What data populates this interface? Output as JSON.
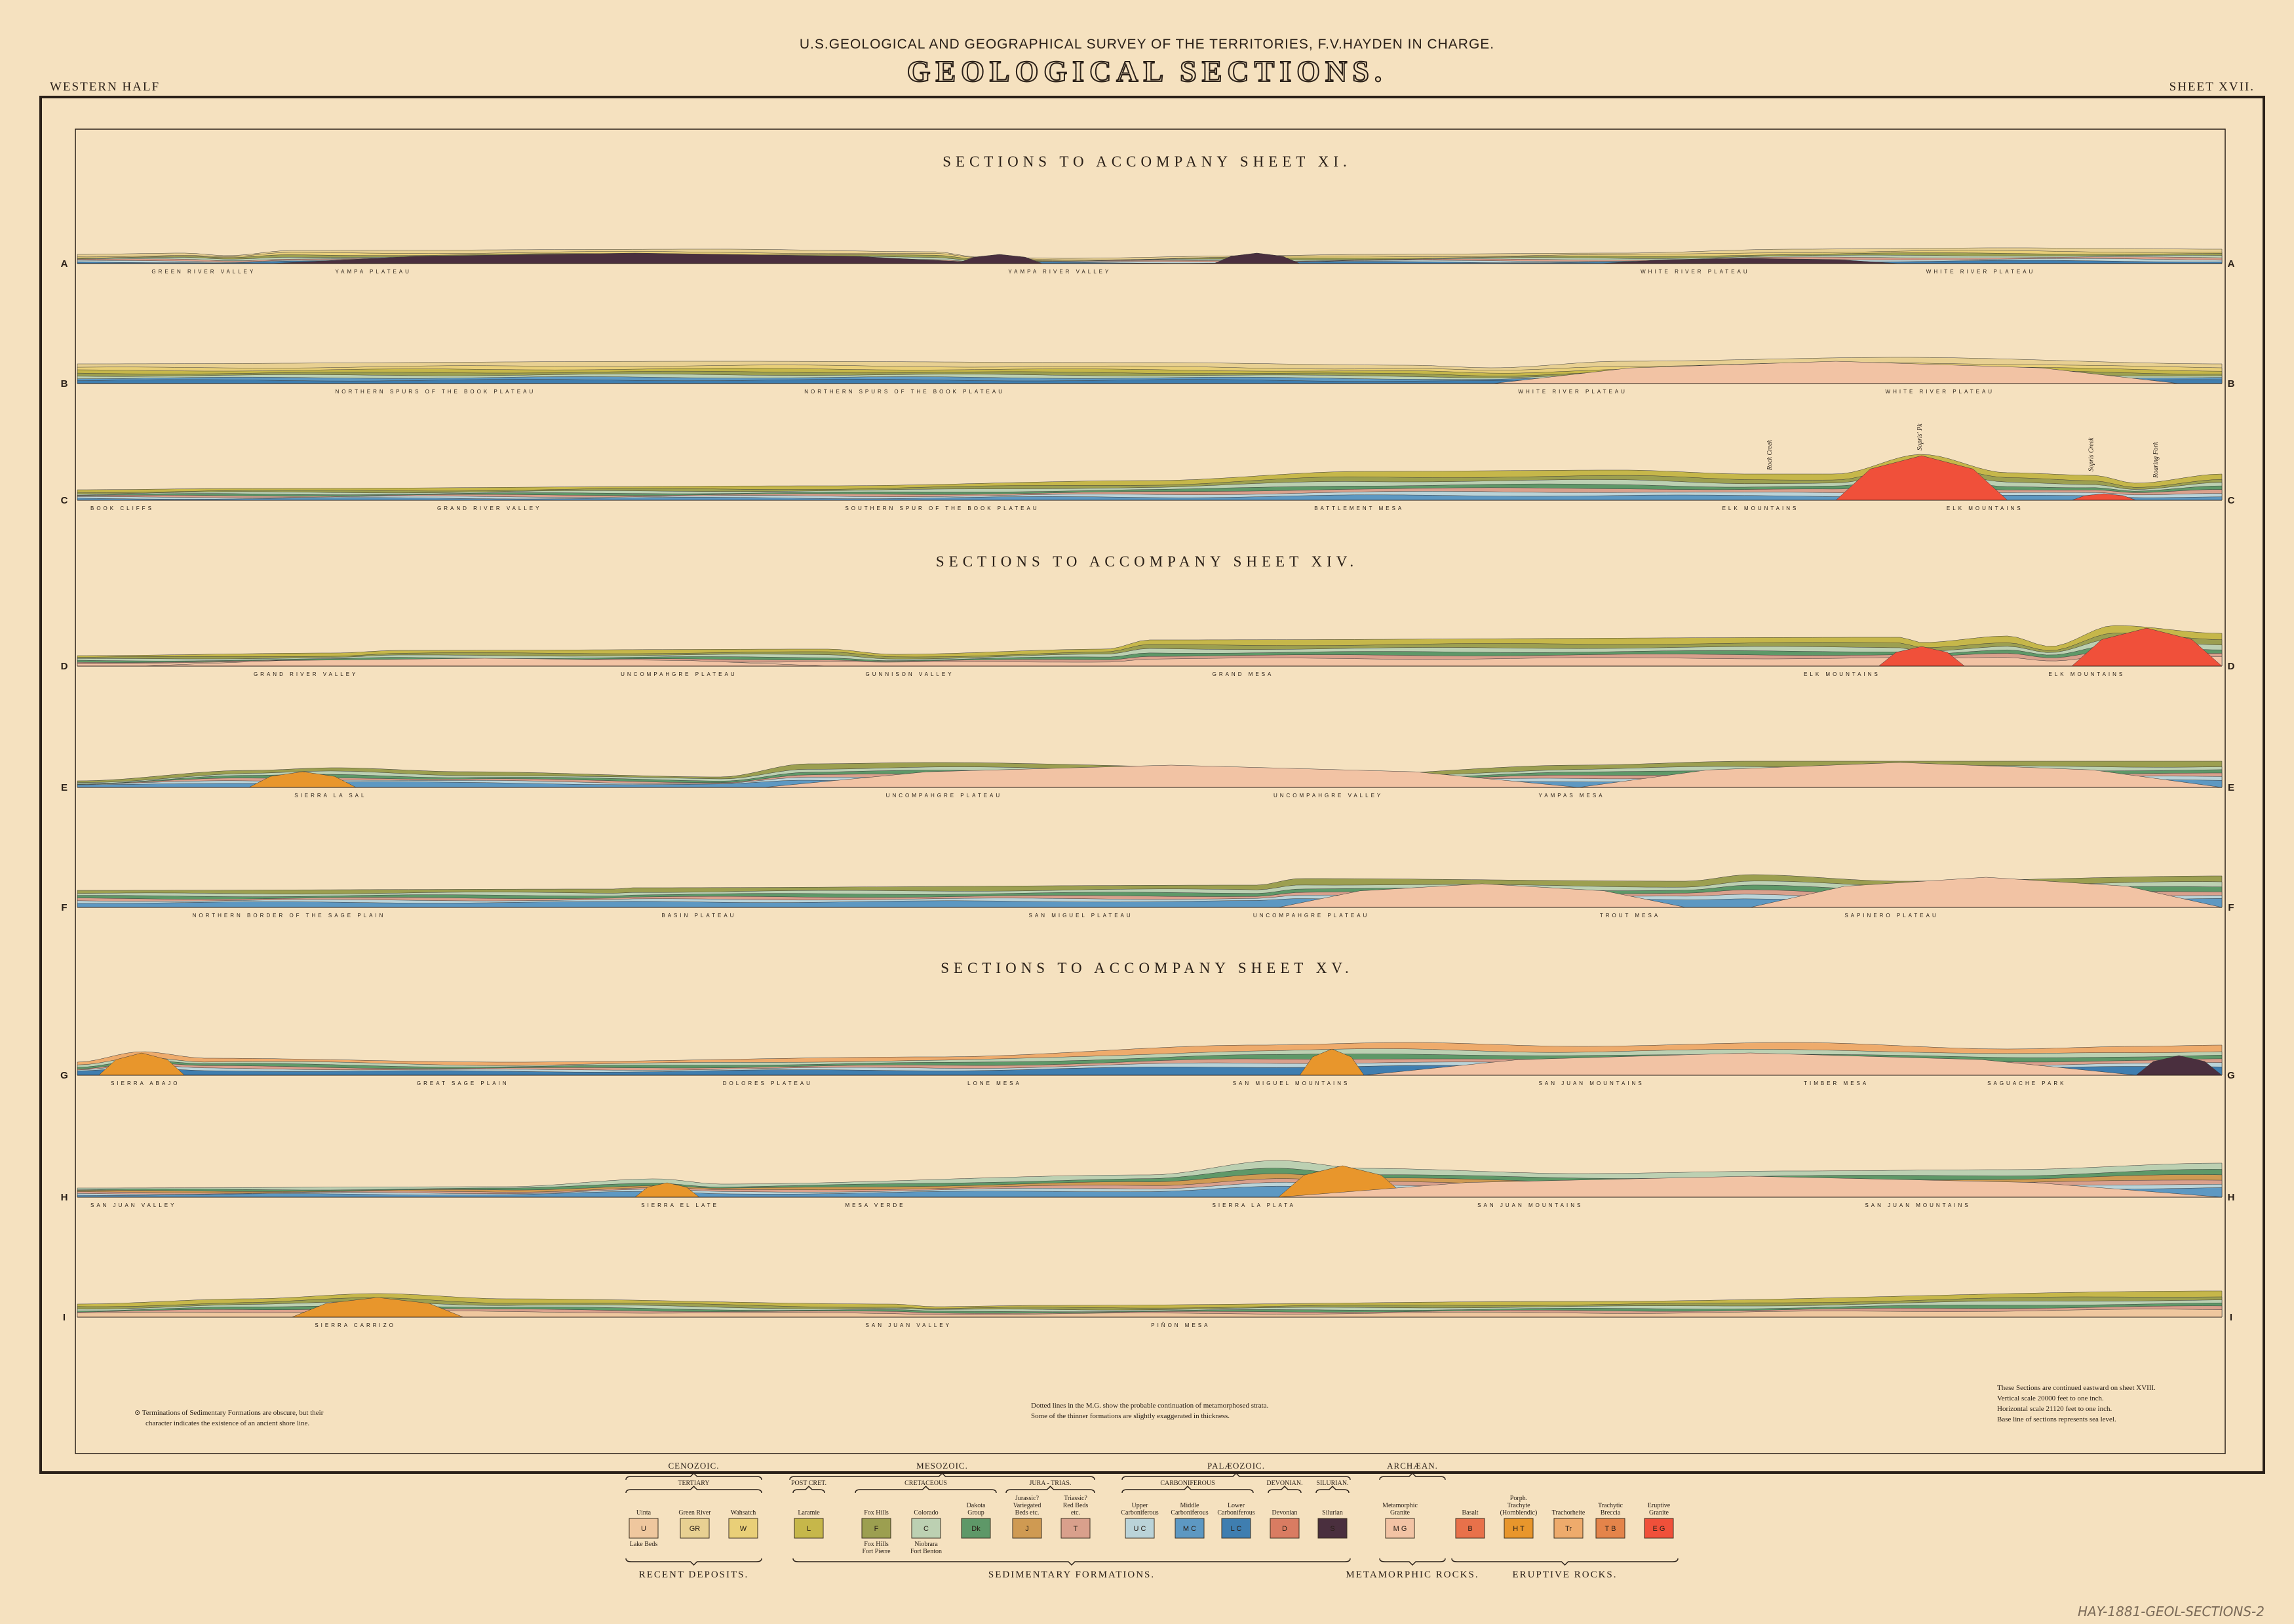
{
  "header": {
    "survey": "U.S.GEOLOGICAL AND GEOGRAPHICAL SURVEY OF THE TERRITORIES, F.V.HAYDEN IN CHARGE.",
    "title": "GEOLOGICAL SECTIONS.",
    "left_corner": "WESTERN HALF",
    "right_corner": "SHEET XVII."
  },
  "headings": [
    "SECTIONS TO ACCOMPANY SHEET XI.",
    "SECTIONS TO ACCOMPANY SHEET XIV.",
    "SECTIONS TO ACCOMPANY SHEET XV."
  ],
  "sections": [
    {
      "letter": "A",
      "places": [
        "GREEN RIVER VALLEY",
        "YAMPA PLATEAU",
        "YAMPA RIVER VALLEY",
        "WHITE RIVER PLATEAU",
        "WHITE RIVER PLATEAU"
      ],
      "peaks": []
    },
    {
      "letter": "B",
      "places": [
        "NORTHERN SPURS OF THE BOOK PLATEAU",
        "NORTHERN SPURS OF THE BOOK PLATEAU",
        "WHITE RIVER PLATEAU",
        "WHITE RIVER PLATEAU"
      ],
      "peaks": []
    },
    {
      "letter": "C",
      "places": [
        "BOOK CLIFFS",
        "GRAND RIVER VALLEY",
        "SOUTHERN SPUR OF THE BOOK PLATEAU",
        "BATTLEMENT MESA",
        "ELK MOUNTAINS",
        "ELK MOUNTAINS"
      ],
      "peaks": [
        "Rock Creek",
        "Sopris' Pk",
        "Sopris Creek",
        "Roaring Fork"
      ]
    },
    {
      "letter": "D",
      "places": [
        "GRAND RIVER VALLEY",
        "UNCOMPAHGRE PLATEAU",
        "GUNNISON VALLEY",
        "GRAND MESA",
        "ELK MOUNTAINS",
        "ELK MOUNTAINS"
      ],
      "peaks": []
    },
    {
      "letter": "E",
      "places": [
        "SIERRA LA SAL",
        "UNCOMPAHGRE PLATEAU",
        "UNCOMPAHGRE VALLEY",
        "YAMPAS MESA"
      ],
      "peaks": []
    },
    {
      "letter": "F",
      "places": [
        "NORTHERN BORDER OF THE SAGE PLAIN",
        "BASIN PLATEAU",
        "SAN MIGUEL PLATEAU",
        "UNCOMPAHGRE PLATEAU",
        "TROUT MESA",
        "SAPINERO PLATEAU"
      ],
      "peaks": []
    },
    {
      "letter": "G",
      "places": [
        "SIERRA ABAJO",
        "GREAT SAGE PLAIN",
        "DOLORES PLATEAU",
        "LONE MESA",
        "SAN MIGUEL MOUNTAINS",
        "SAN JUAN MOUNTAINS",
        "TIMBER MESA",
        "SAGUACHE PARK"
      ],
      "peaks": []
    },
    {
      "letter": "H",
      "places": [
        "SAN JUAN VALLEY",
        "SIERRA EL LATE",
        "MESA VERDE",
        "SIERRA LA PLATA",
        "SAN JUAN MOUNTAINS",
        "SAN JUAN MOUNTAINS"
      ],
      "peaks": []
    },
    {
      "letter": "I",
      "places": [
        "SIERRA CARRIZO",
        "SAN JUAN VALLEY",
        "PIÑON MESA"
      ],
      "peaks": []
    }
  ],
  "notes": {
    "left": [
      "⊙  Terminations of Sedimentary Formations are obscure, but their",
      "character indicates the existence of an ancient shore line."
    ],
    "center": [
      "Dotted lines in the M.G. show the probable continuation of metamorphosed strata.",
      "Some of the thinner formations are slightly exaggerated in thickness."
    ],
    "right": [
      "These Sections are continued eastward on sheet XVIII.",
      "Vertical scale 20000 feet to one inch.",
      "Horizontal scale 21120 feet to one inch.",
      "Base line of sections represents sea level."
    ]
  },
  "legend": {
    "eras": [
      "CENOZOIC.",
      "MESOZOIC.",
      "PALÆOZOIC.",
      "ARCHÆAN."
    ],
    "subgroups": [
      "TERTIARY",
      "POST CRET.",
      "CRETACEOUS",
      "JURA - TRIAS.",
      "CARBONIFEROUS",
      "DEVONIAN.",
      "SILURIAN."
    ],
    "units": [
      {
        "code": "U",
        "label": "Uinta",
        "sublabel": "Lake Beds",
        "color": "#efc79e"
      },
      {
        "code": "GR",
        "label": "Green River",
        "sublabel": "",
        "color": "#e8d092"
      },
      {
        "code": "W",
        "label": "Wahsatch",
        "sublabel": "",
        "color": "#e9cf78"
      },
      {
        "code": "L",
        "label": "Laramie",
        "sublabel": "",
        "color": "#c6b74a"
      },
      {
        "code": "F",
        "label": "Fox Hills",
        "sublabel": "Fox Hills Fort Pierre",
        "color": "#9c9f50"
      },
      {
        "code": "C",
        "label": "Colorado",
        "sublabel": "Niobrara Fort Benton",
        "color": "#bcd0b2"
      },
      {
        "code": "Dk",
        "label": "Dakota Group",
        "sublabel": "",
        "color": "#5e9868"
      },
      {
        "code": "J",
        "label": "Jurassic? Variegated Beds etc.",
        "sublabel": "",
        "color": "#cf9a52"
      },
      {
        "code": "T",
        "label": "Triassic? Red Beds etc.",
        "sublabel": "",
        "color": "#d9a08c"
      },
      {
        "code": "U C",
        "label": "Upper Carboniferous",
        "sublabel": "",
        "color": "#bad3d8"
      },
      {
        "code": "M C",
        "label": "Middle Carboniferous",
        "sublabel": "",
        "color": "#5d98c2"
      },
      {
        "code": "L C",
        "label": "Lower Carboniferous",
        "sublabel": "",
        "color": "#3f7eb0"
      },
      {
        "code": "D",
        "label": "Devonian",
        "sublabel": "",
        "color": "#d97c62"
      },
      {
        "code": "S",
        "label": "Silurian",
        "sublabel": "",
        "color": "#4a2f3e"
      },
      {
        "code": "M G",
        "label": "Metamorphic Granite",
        "sublabel": "",
        "color": "#f2c3a4"
      },
      {
        "code": "B",
        "label": "Basalt",
        "sublabel": "",
        "color": "#e8714a"
      },
      {
        "code": "H T",
        "label": "Porph. Trachyte (Hornblendic)",
        "sublabel": "",
        "color": "#e8962c"
      },
      {
        "code": "Tr",
        "label": "Trachorheite",
        "sublabel": "",
        "color": "#eeab6c"
      },
      {
        "code": "T B",
        "label": "Trachytic Breccia",
        "sublabel": "",
        "color": "#e4844a"
      },
      {
        "code": "E G",
        "label": "Eruptive Granite",
        "sublabel": "",
        "color": "#f0503a"
      }
    ],
    "categories": [
      "RECENT DEPOSITS.",
      "SEDIMENTARY FORMATIONS.",
      "METAMORPHIC ROCKS.",
      "ERUPTIVE ROCKS."
    ]
  },
  "archive_mark": "HAY-1881-GEOL-SECTIONS-2",
  "colors": {
    "paper": "#f5e1bf",
    "ink": "#2a2018"
  }
}
